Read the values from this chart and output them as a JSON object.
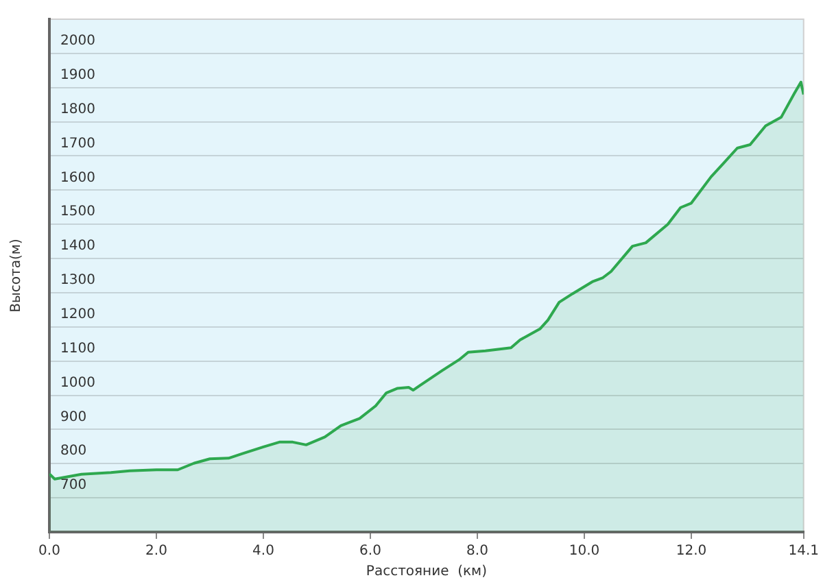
{
  "chart_data": {
    "type": "area",
    "xlabel": "Расстояние  (км)",
    "ylabel": "Высота(м)",
    "color": "#2ea84f",
    "x": [
      0,
      0.1,
      0.6,
      1.15,
      1.5,
      2.0,
      2.4,
      2.7,
      3.0,
      3.35,
      3.6,
      4.0,
      4.3,
      4.55,
      4.8,
      5.15,
      5.45,
      5.8,
      6.1,
      6.3,
      6.5,
      6.72,
      6.8,
      6.93,
      7.34,
      7.66,
      7.83,
      8.15,
      8.63,
      8.8,
      9.17,
      9.32,
      9.53,
      9.78,
      10.15,
      10.34,
      10.5,
      10.9,
      11.15,
      11.56,
      11.8,
      12.0,
      12.37,
      12.6,
      12.86,
      13.1,
      13.39,
      13.68,
      13.93,
      14.05,
      14.1
    ],
    "values": [
      770,
      755,
      769,
      774,
      779,
      782,
      782,
      801,
      814,
      816,
      829,
      849,
      863,
      863,
      855,
      878,
      911,
      932,
      969,
      1007,
      1020,
      1023,
      1015,
      1029,
      1072,
      1104,
      1126,
      1130,
      1139,
      1162,
      1194,
      1220,
      1272,
      1297,
      1332,
      1343,
      1362,
      1436,
      1446,
      1500,
      1549,
      1562,
      1639,
      1678,
      1723,
      1733,
      1788,
      1813,
      1884,
      1916,
      1880
    ],
    "xlim": [
      0,
      14.1
    ],
    "ylim": [
      600,
      2100
    ],
    "xticks": [
      {
        "value": 0,
        "label": "0.0"
      },
      {
        "value": 2,
        "label": "2.0"
      },
      {
        "value": 4,
        "label": "4.0"
      },
      {
        "value": 6,
        "label": "6.0"
      },
      {
        "value": 8,
        "label": "8.0"
      },
      {
        "value": 10,
        "label": "10.0"
      },
      {
        "value": 12,
        "label": "12.0"
      },
      {
        "value": 14.1,
        "label": "14.1"
      }
    ],
    "yticks": [
      700,
      800,
      900,
      1000,
      1100,
      1200,
      1300,
      1400,
      1500,
      1600,
      1700,
      1800,
      1900,
      2000
    ],
    "grid": "y"
  }
}
